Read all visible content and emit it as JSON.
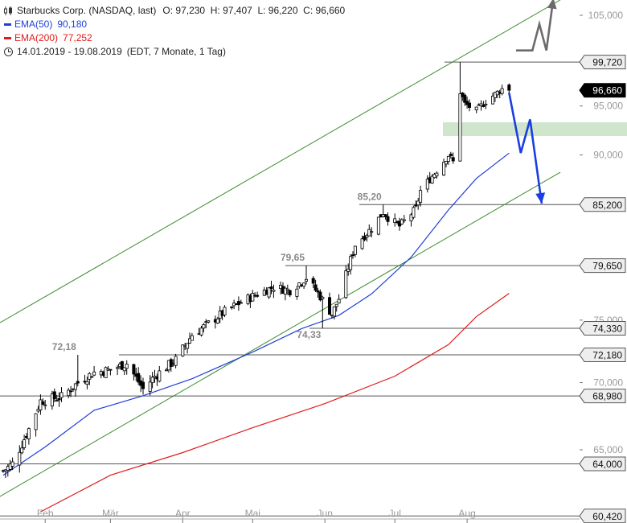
{
  "legend": {
    "title": "Starbucks Corp. (NASDAQ, last)",
    "ohlc": "O: 97,230  H: 97,407  L: 96,220  C: 96,660",
    "ema50_label": "EMA(50)",
    "ema50_value": "90,180",
    "ema200_label": "EMA(200)",
    "ema200_value": "77,252",
    "period": "14.01.2019 - 19.08.2019",
    "period_info": "(EDT, 7 Monate, 1 Tag)"
  },
  "colors": {
    "ema50": "#1f3fd6",
    "ema200": "#e01b1b",
    "channel": "#3c8c2c",
    "forecast_bear": "#1a3ee0",
    "forecast_bull": "#6b6b6b",
    "zone": "#cfe5cc"
  },
  "chart_data": {
    "type": "candlestick",
    "title": "Starbucks Corp. (NASDAQ, last)",
    "x_range": [
      "2019-01-14",
      "2019-08-19"
    ],
    "x_ticks": [
      {
        "date": "2019-02-01",
        "label": "Feb"
      },
      {
        "date": "2019-03-01",
        "label": "Mär"
      },
      {
        "date": "2019-04-01",
        "label": "Apr"
      },
      {
        "date": "2019-05-01",
        "label": "Mai"
      },
      {
        "date": "2019-06-01",
        "label": "Jun"
      },
      {
        "date": "2019-07-01",
        "label": "Jul"
      },
      {
        "date": "2019-08-01",
        "label": "Aug"
      }
    ],
    "y_ticks": [
      {
        "value": 65,
        "label": "65,000"
      },
      {
        "value": 70,
        "label": "70,000"
      },
      {
        "value": 75,
        "label": "75,000"
      },
      {
        "value": 90,
        "label": "90,000"
      },
      {
        "value": 95,
        "label": "95,000"
      },
      {
        "value": 105,
        "label": "105,000"
      }
    ],
    "ylim": [
      60.4,
      106
    ],
    "price_key_points": [
      {
        "date": "2019-01-14",
        "close": 63.5
      },
      {
        "date": "2019-01-18",
        "close": 64.0
      },
      {
        "date": "2019-01-25",
        "close": 66.5
      },
      {
        "date": "2019-01-30",
        "close": 68.6
      },
      {
        "date": "2019-02-08",
        "close": 68.9
      },
      {
        "date": "2019-02-15",
        "close": 70.0
      },
      {
        "date": "2019-02-22",
        "close": 70.8
      },
      {
        "date": "2019-03-01",
        "close": 71.0
      },
      {
        "date": "2019-03-08",
        "close": 71.5
      },
      {
        "date": "2019-03-15",
        "close": 69.5
      },
      {
        "date": "2019-03-20",
        "close": 70.5
      },
      {
        "date": "2019-03-29",
        "close": 71.8
      },
      {
        "date": "2019-04-05",
        "close": 73.8
      },
      {
        "date": "2019-04-12",
        "close": 74.7
      },
      {
        "date": "2019-04-19",
        "close": 75.7
      },
      {
        "date": "2019-04-26",
        "close": 76.5
      },
      {
        "date": "2019-05-03",
        "close": 77.2
      },
      {
        "date": "2019-05-10",
        "close": 77.8
      },
      {
        "date": "2019-05-17",
        "close": 77.5
      },
      {
        "date": "2019-05-24",
        "close": 78.6
      },
      {
        "date": "2019-05-30",
        "close": 77.0
      },
      {
        "date": "2019-06-04",
        "close": 75.5
      },
      {
        "date": "2019-06-07",
        "close": 76.8
      },
      {
        "date": "2019-06-11",
        "close": 79.5
      },
      {
        "date": "2019-06-14",
        "close": 81.5
      },
      {
        "date": "2019-06-21",
        "close": 83.0
      },
      {
        "date": "2019-06-26",
        "close": 84.5
      },
      {
        "date": "2019-06-28",
        "close": 84.0
      },
      {
        "date": "2019-07-03",
        "close": 83.2
      },
      {
        "date": "2019-07-10",
        "close": 84.8
      },
      {
        "date": "2019-07-12",
        "close": 86.5
      },
      {
        "date": "2019-07-19",
        "close": 88.5
      },
      {
        "date": "2019-07-24",
        "close": 90.0
      },
      {
        "date": "2019-07-26",
        "close": 89.3
      },
      {
        "date": "2019-07-29",
        "close": 96.5
      },
      {
        "date": "2019-07-31",
        "close": 95.2
      },
      {
        "date": "2019-08-05",
        "close": 94.5
      },
      {
        "date": "2019-08-09",
        "close": 95.5
      },
      {
        "date": "2019-08-16",
        "close": 96.8
      },
      {
        "date": "2019-08-19",
        "close": 96.66
      }
    ],
    "last_candle": {
      "date": "2019-08-19",
      "open": 97.23,
      "high": 97.407,
      "low": 96.22,
      "close": 96.66
    },
    "series": [
      {
        "name": "EMA(50)",
        "color": "#1f3fd6",
        "points": [
          {
            "date": "2019-01-14",
            "value": 63.2
          },
          {
            "date": "2019-02-01",
            "value": 65.2
          },
          {
            "date": "2019-02-22",
            "value": 67.9
          },
          {
            "date": "2019-03-15",
            "value": 69.0
          },
          {
            "date": "2019-04-05",
            "value": 70.3
          },
          {
            "date": "2019-05-01",
            "value": 72.4
          },
          {
            "date": "2019-05-22",
            "value": 74.3
          },
          {
            "date": "2019-06-07",
            "value": 75.4
          },
          {
            "date": "2019-06-21",
            "value": 77.2
          },
          {
            "date": "2019-07-08",
            "value": 80.4
          },
          {
            "date": "2019-07-24",
            "value": 84.7
          },
          {
            "date": "2019-08-05",
            "value": 87.7
          },
          {
            "date": "2019-08-19",
            "value": 90.18
          }
        ]
      },
      {
        "name": "EMA(200)",
        "color": "#e01b1b",
        "points": [
          {
            "date": "2019-01-30",
            "value": 60.7
          },
          {
            "date": "2019-03-01",
            "value": 63.2
          },
          {
            "date": "2019-04-01",
            "value": 64.8
          },
          {
            "date": "2019-05-01",
            "value": 66.6
          },
          {
            "date": "2019-06-01",
            "value": 68.4
          },
          {
            "date": "2019-07-01",
            "value": 70.5
          },
          {
            "date": "2019-07-24",
            "value": 73.0
          },
          {
            "date": "2019-08-05",
            "value": 75.3
          },
          {
            "date": "2019-08-19",
            "value": 77.252
          }
        ]
      }
    ],
    "horizontal_levels": [
      {
        "value": 99.72,
        "label": "99,720",
        "highlight": false
      },
      {
        "value": 96.66,
        "label": "96,660",
        "highlight": true
      },
      {
        "value": 85.2,
        "label": "85,200",
        "highlight": false
      },
      {
        "value": 79.65,
        "label": "79,650",
        "highlight": false
      },
      {
        "value": 74.33,
        "label": "74,330",
        "highlight": false
      },
      {
        "value": 72.18,
        "label": "72,180",
        "highlight": false
      },
      {
        "value": 68.98,
        "label": "68,980",
        "highlight": false
      },
      {
        "value": 64.0,
        "label": "64,000",
        "highlight": false
      },
      {
        "value": 60.42,
        "label": "60,420",
        "highlight": false
      }
    ],
    "annotations": [
      {
        "text": "72,18",
        "date": "2019-02-15",
        "value": 72.18
      },
      {
        "text": "79,65",
        "date": "2019-05-24",
        "value": 79.65
      },
      {
        "text": "74,33",
        "date": "2019-05-31",
        "value": 74.33
      },
      {
        "text": "85,20",
        "date": "2019-06-26",
        "value": 85.2
      }
    ],
    "resistance_zone": {
      "from": 91.9,
      "to": 93.3
    },
    "trend_channel": {
      "lower": [
        {
          "date": "2019-01-10",
          "value": 61.5
        },
        {
          "date": "2019-09-10",
          "value": 88.3
        }
      ],
      "upper": [
        {
          "date": "2019-01-10",
          "value": 74.5
        },
        {
          "date": "2019-09-10",
          "value": 106.8
        }
      ]
    },
    "forecast_paths": [
      {
        "name": "bearish",
        "points": [
          {
            "date": "2019-08-19",
            "value": 96.4
          },
          {
            "date": "2019-08-24",
            "value": 90.2
          },
          {
            "date": "2019-08-28",
            "value": 93.6
          },
          {
            "date": "2019-09-02",
            "value": 85.3
          }
        ]
      },
      {
        "name": "bullish",
        "points": [
          {
            "date": "2019-08-22",
            "value": 101.0
          },
          {
            "date": "2019-08-29",
            "value": 101.0
          },
          {
            "date": "2019-09-01",
            "value": 104.0
          },
          {
            "date": "2019-09-04",
            "value": 101.0
          },
          {
            "date": "2019-09-07",
            "value": 107.0
          }
        ]
      }
    ]
  }
}
